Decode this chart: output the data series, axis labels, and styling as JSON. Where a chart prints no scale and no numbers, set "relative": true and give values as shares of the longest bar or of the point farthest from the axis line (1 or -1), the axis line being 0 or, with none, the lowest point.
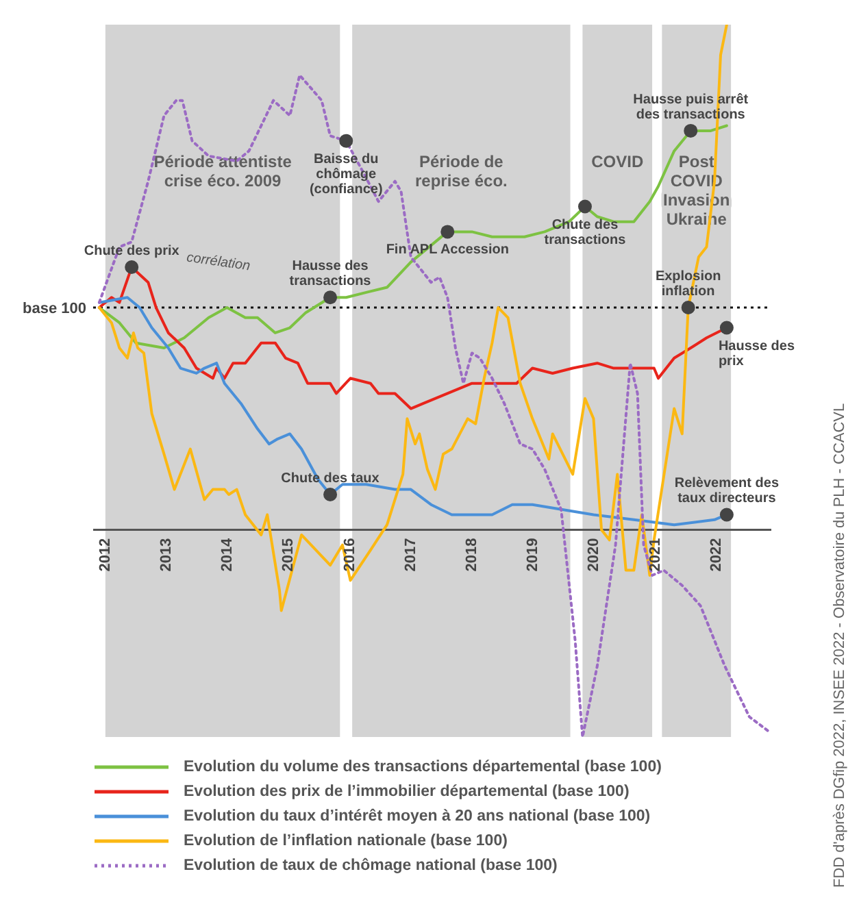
{
  "chart_data": {
    "type": "line",
    "relative": true,
    "xlim": [
      2011.8,
      2022.9
    ],
    "xticks": [
      2012,
      2013,
      2014,
      2015,
      2016,
      2017,
      2018,
      2019,
      2020,
      2021,
      2022
    ],
    "legend": "bottom",
    "series": [
      {
        "name": "Evolution du volume des transactions départemental (base 100)",
        "color": "#7dc242",
        "line_style": "solid",
        "x": [
          2011.9,
          2012.23,
          2012.5,
          2012.96,
          2013.29,
          2013.69,
          2013.99,
          2014.29,
          2014.49,
          2014.78,
          2015.02,
          2015.28,
          2015.68,
          2015.94,
          2016.27,
          2016.61,
          2017.0,
          2017.2,
          2017.6,
          2018.0,
          2018.33,
          2018.86,
          2019.19,
          2019.59,
          2019.85,
          2020.05,
          2020.32,
          2020.65,
          2020.91,
          2021.05,
          2021.31,
          2021.58,
          2021.91,
          2022.17
        ],
        "values": [
          0.44,
          0.41,
          0.37,
          0.36,
          0.38,
          0.42,
          0.44,
          0.42,
          0.42,
          0.39,
          0.4,
          0.43,
          0.46,
          0.46,
          0.47,
          0.48,
          0.53,
          0.55,
          0.59,
          0.59,
          0.58,
          0.58,
          0.59,
          0.61,
          0.64,
          0.62,
          0.61,
          0.61,
          0.65,
          0.68,
          0.75,
          0.79,
          0.79,
          0.8
        ]
      },
      {
        "name": "Evolution des prix de l’immobilier départemental (base 100)",
        "color": "#e8241b",
        "line_style": "solid",
        "x": [
          2011.9,
          2012.1,
          2012.23,
          2012.43,
          2012.7,
          2012.83,
          2013.03,
          2013.29,
          2013.49,
          2013.76,
          2013.82,
          2013.95,
          2014.09,
          2014.29,
          2014.55,
          2014.78,
          2014.95,
          2015.15,
          2015.31,
          2015.68,
          2015.78,
          2016.01,
          2016.34,
          2016.47,
          2016.74,
          2017.0,
          2017.2,
          2017.6,
          2018.0,
          2018.39,
          2018.73,
          2018.99,
          2019.32,
          2019.65,
          2020.05,
          2020.32,
          2020.65,
          2020.98,
          2021.05,
          2021.31,
          2021.58,
          2021.84,
          2022.17
        ],
        "values": [
          0.44,
          0.46,
          0.45,
          0.52,
          0.49,
          0.44,
          0.39,
          0.36,
          0.32,
          0.3,
          0.32,
          0.3,
          0.33,
          0.33,
          0.37,
          0.37,
          0.34,
          0.33,
          0.29,
          0.29,
          0.27,
          0.3,
          0.29,
          0.27,
          0.27,
          0.24,
          0.25,
          0.27,
          0.29,
          0.29,
          0.29,
          0.32,
          0.31,
          0.32,
          0.33,
          0.32,
          0.32,
          0.32,
          0.3,
          0.34,
          0.36,
          0.38,
          0.4
        ]
      },
      {
        "name": "Evolution du taux d’intérêt moyen à 20 ans national (base 100)",
        "color": "#4a90d9",
        "line_style": "solid",
        "x": [
          2011.9,
          2012.36,
          2012.56,
          2012.76,
          2013.03,
          2013.23,
          2013.49,
          2013.62,
          2013.82,
          2013.95,
          2014.22,
          2014.49,
          2014.68,
          2014.82,
          2015.02,
          2015.21,
          2015.48,
          2015.68,
          2015.88,
          2016.27,
          2016.74,
          2017.0,
          2017.33,
          2017.67,
          2018.33,
          2018.66,
          2018.99,
          2019.99,
          2020.65,
          2021.31,
          2021.97,
          2022.17
        ],
        "values": [
          0.45,
          0.46,
          0.44,
          0.4,
          0.36,
          0.32,
          0.31,
          0.32,
          0.33,
          0.29,
          0.25,
          0.2,
          0.17,
          0.18,
          0.19,
          0.16,
          0.1,
          0.07,
          0.09,
          0.09,
          0.08,
          0.08,
          0.05,
          0.03,
          0.03,
          0.05,
          0.05,
          0.03,
          0.02,
          0.01,
          0.02,
          0.03
        ]
      },
      {
        "name": "Evolution de l’inflation nationale (base 100)",
        "color": "#fbb813",
        "line_style": "solid",
        "x": [
          2011.9,
          2012.1,
          2012.23,
          2012.36,
          2012.46,
          2012.53,
          2012.63,
          2012.76,
          2012.96,
          2013.13,
          2013.39,
          2013.62,
          2013.76,
          2013.95,
          2014.02,
          2014.15,
          2014.29,
          2014.55,
          2014.65,
          2014.85,
          2014.88,
          2015.21,
          2015.68,
          2015.88,
          2016.01,
          2016.34,
          2016.61,
          2016.87,
          2016.94,
          2017.07,
          2017.14,
          2017.27,
          2017.4,
          2017.53,
          2017.67,
          2017.93,
          2018.06,
          2018.2,
          2018.33,
          2018.43,
          2018.59,
          2018.79,
          2018.99,
          2019.26,
          2019.32,
          2019.65,
          2019.85,
          2019.99,
          2020.12,
          2020.25,
          2020.38,
          2020.52,
          2020.65,
          2020.78,
          2020.91,
          2020.98,
          2021.31,
          2021.44,
          2021.54,
          2021.71,
          2021.84,
          2021.97,
          2022.07,
          2022.17
        ],
        "values": [
          0.44,
          0.41,
          0.36,
          0.34,
          0.39,
          0.36,
          0.35,
          0.23,
          0.15,
          0.08,
          0.16,
          0.06,
          0.08,
          0.08,
          0.07,
          0.08,
          0.03,
          -0.01,
          0.03,
          -0.12,
          -0.16,
          -0.01,
          -0.07,
          -0.03,
          -0.1,
          -0.04,
          0.01,
          0.11,
          0.22,
          0.17,
          0.19,
          0.12,
          0.08,
          0.15,
          0.16,
          0.22,
          0.21,
          0.3,
          0.37,
          0.44,
          0.42,
          0.29,
          0.22,
          0.14,
          0.19,
          0.11,
          0.26,
          0.22,
          0,
          -0.02,
          0.11,
          -0.08,
          -0.08,
          0.03,
          -0.09,
          -0.02,
          0.24,
          0.19,
          0.44,
          0.54,
          0.56,
          0.69,
          0.94,
          1
        ]
      },
      {
        "name": "Evolution de taux de chômage national (base 100)",
        "color": "#9b6bc4",
        "line_style": "dotted",
        "x": [
          2011.9,
          2012.23,
          2012.43,
          2012.7,
          2012.96,
          2013.16,
          2013.26,
          2013.42,
          2013.69,
          2014.15,
          2014.35,
          2014.75,
          2015.02,
          2015.18,
          2015.54,
          2015.68,
          2015.94,
          2016.21,
          2016.47,
          2016.74,
          2016.84,
          2017.0,
          2017.2,
          2017.33,
          2017.47,
          2017.6,
          2017.73,
          2017.86,
          2018.0,
          2018.13,
          2018.33,
          2018.53,
          2018.79,
          2018.99,
          2019.19,
          2019.46,
          2019.69,
          2019.81,
          2020.05,
          2020.35,
          2020.59,
          2020.71,
          2020.81,
          2020.95,
          2021.14,
          2021.44,
          2021.74,
          2022.14,
          2022.54,
          2022.87
        ],
        "values": [
          0.45,
          0.56,
          0.57,
          0.69,
          0.82,
          0.85,
          0.85,
          0.77,
          0.74,
          0.73,
          0.75,
          0.85,
          0.82,
          0.9,
          0.85,
          0.78,
          0.77,
          0.71,
          0.65,
          0.69,
          0.67,
          0.54,
          0.51,
          0.49,
          0.5,
          0.46,
          0.36,
          0.29,
          0.35,
          0.34,
          0.3,
          0.25,
          0.17,
          0.16,
          0.12,
          0.04,
          -0.22,
          -0.41,
          -0.27,
          -0.03,
          0.33,
          0.27,
          -0.03,
          -0.09,
          -0.08,
          -0.11,
          -0.15,
          -0.27,
          -0.37,
          -0.4
        ]
      }
    ],
    "ref_lines": [
      {
        "axis": "y",
        "value": 0.44,
        "label": "base 100",
        "color": "#111111",
        "line_style": "dotted"
      }
    ],
    "bands": [
      {
        "axis": "x",
        "from": 2012.0,
        "to": 2015.84,
        "label": "Période attentiste crise éco. 2009",
        "color": "#d3d3d3"
      },
      {
        "axis": "x",
        "from": 2016.04,
        "to": 2019.61,
        "label": "Période de reprise éco.",
        "color": "#d3d3d3"
      },
      {
        "axis": "x",
        "from": 2019.81,
        "to": 2020.95,
        "label": "COVID",
        "color": "#d3d3d3"
      },
      {
        "axis": "x",
        "from": 2021.11,
        "to": 2022.24,
        "label": "Post COVID Invasion Ukraine",
        "color": "#d3d3d3"
      }
    ],
    "annotations": [
      {
        "text": "Chute des prix",
        "x": 2012.43,
        "y": 0.52
      },
      {
        "text": "Hausse des transactions",
        "x": 2015.68,
        "y": 0.46
      },
      {
        "text": "Baisse du chômage (confiance)",
        "x": 2015.94,
        "y": 0.77
      },
      {
        "text": "Chute des taux",
        "x": 2015.68,
        "y": 0.07
      },
      {
        "text": "Fin APL Accession",
        "x": 2017.6,
        "y": 0.59
      },
      {
        "text": "Chute des transactions",
        "x": 2019.85,
        "y": 0.64
      },
      {
        "text": "Hausse puis arrêt des transactions",
        "x": 2021.58,
        "y": 0.79
      },
      {
        "text": "Explosion inflation",
        "x": 2021.54,
        "y": 0.44
      },
      {
        "text": "Hausse des prix",
        "x": 2022.17,
        "y": 0.4
      },
      {
        "text": "Relèvement des taux directeurs",
        "x": 2022.17,
        "y": 0.03
      },
      "corrélation",
      "FDD d'après DGfip 2022, INSEE 2022 - Observatoire du PLH - CCACVL"
    ]
  }
}
